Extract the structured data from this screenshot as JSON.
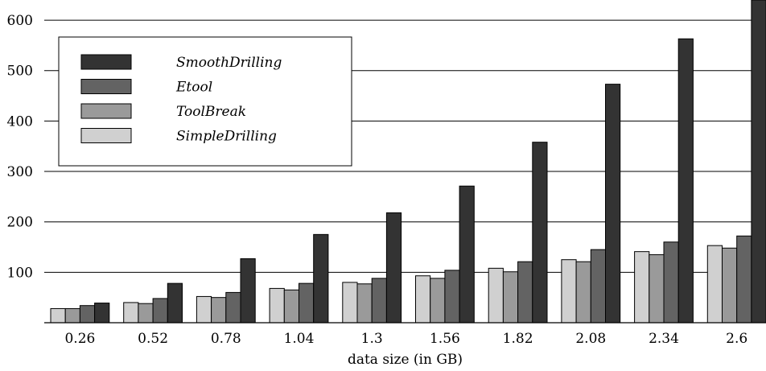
{
  "chart_data": {
    "type": "bar",
    "title": "",
    "xlabel": "data size (in GB)",
    "ylabel": "",
    "categories": [
      "0.26",
      "0.52",
      "0.78",
      "1.04",
      "1.3",
      "1.56",
      "1.82",
      "2.08",
      "2.34",
      "2.6"
    ],
    "ylim": [
      0,
      640
    ],
    "yticks": [
      100,
      200,
      300,
      400,
      500,
      600
    ],
    "grid": "horizontal",
    "legend_position": "top-left",
    "series": [
      {
        "name": "SimpleDrilling",
        "color": "#d0d0d0",
        "values": [
          28,
          40,
          52,
          68,
          80,
          93,
          108,
          125,
          141,
          153
        ]
      },
      {
        "name": "ToolBreak",
        "color": "#9a9a9a",
        "values": [
          28,
          38,
          50,
          65,
          77,
          88,
          101,
          121,
          135,
          148
        ]
      },
      {
        "name": "Etool",
        "color": "#636363",
        "values": [
          34,
          48,
          60,
          78,
          88,
          104,
          121,
          145,
          160,
          172
        ]
      },
      {
        "name": "SmoothDrilling",
        "color": "#333333",
        "values": [
          39,
          78,
          127,
          175,
          218,
          271,
          358,
          473,
          563,
          640
        ]
      }
    ],
    "legend_order": [
      "SmoothDrilling",
      "Etool",
      "ToolBreak",
      "SimpleDrilling"
    ]
  }
}
